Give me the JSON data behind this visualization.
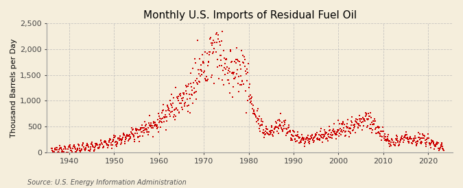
{
  "title": "Monthly U.S. Imports of Residual Fuel Oil",
  "ylabel": "Thousand Barrels per Day",
  "source": "Source: U.S. Energy Information Administration",
  "background_color": "#f5eedc",
  "plot_background_color": "#f5eedc",
  "dot_color": "#cc0000",
  "dot_size": 1.5,
  "ylim": [
    0,
    2500
  ],
  "yticks": [
    0,
    500,
    1000,
    1500,
    2000,
    2500
  ],
  "ytick_labels": [
    "0",
    "500",
    "1,000",
    "1,500",
    "2,000",
    "2,500"
  ],
  "xlim_start": 1935.0,
  "xlim_end": 2025.5,
  "xticks": [
    1940,
    1950,
    1960,
    1970,
    1980,
    1990,
    2000,
    2010,
    2020
  ],
  "grid_color": "#bbbbbb",
  "grid_linestyle": "--",
  "grid_alpha": 0.8,
  "title_fontsize": 11,
  "axis_fontsize": 8,
  "source_fontsize": 7,
  "title_fontweight": "normal"
}
